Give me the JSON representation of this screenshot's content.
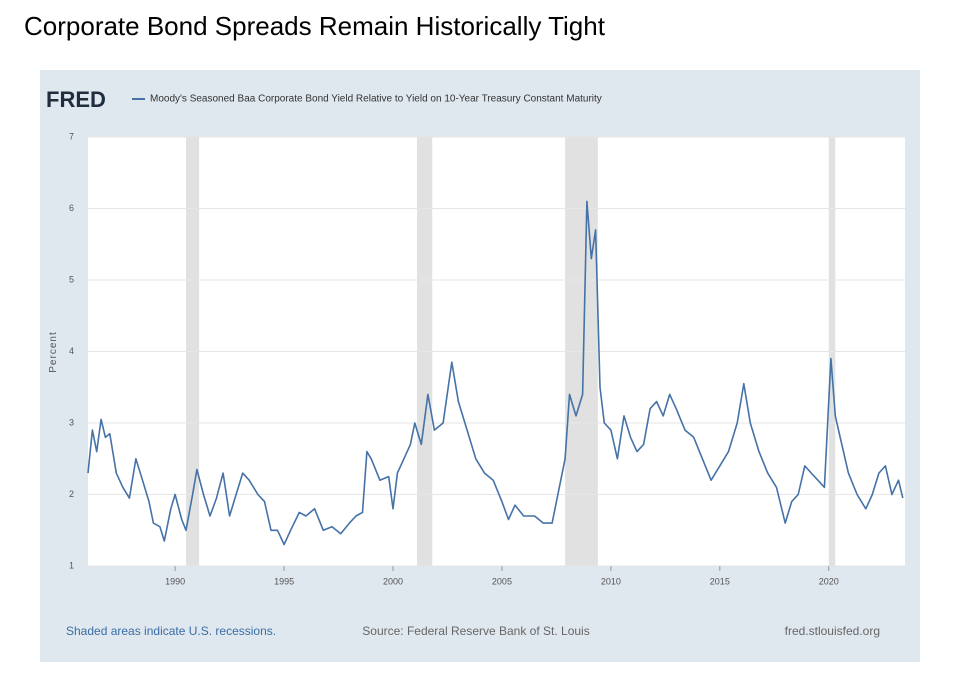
{
  "page_title": "Corporate Bond Spreads Remain Historically Tight",
  "chart_data": {
    "type": "line",
    "logo": "FRED",
    "title": "Moody's Seasoned Baa Corporate Bond Yield Relative to Yield on 10-Year Treasury Constant Maturity",
    "ylabel": "Percent",
    "note": "Shaded areas indicate U.S. recessions.",
    "source": "Source: Federal Reserve Bank of St. Louis",
    "url": "fred.stlouisfed.org",
    "xlim": [
      1986,
      2023.5
    ],
    "ylim": [
      1,
      7
    ],
    "xticks": [
      1990,
      1995,
      2000,
      2005,
      2010,
      2015,
      2020
    ],
    "yticks": [
      1,
      2,
      3,
      4,
      5,
      6,
      7
    ],
    "grid": true,
    "recession_color": "#e1e1e1",
    "recessions": [
      [
        1990.5,
        1991.1
      ],
      [
        2001.1,
        2001.8
      ],
      [
        2007.9,
        2009.4
      ],
      [
        2020.0,
        2020.3
      ]
    ],
    "series": [
      {
        "name": "Moody's Seasoned Baa Corporate Bond Yield Relative to Yield on 10-Year Treasury Constant Maturity",
        "color": "#4572a7",
        "x": [
          1986.0,
          1986.2,
          1986.4,
          1986.6,
          1986.8,
          1987.0,
          1987.3,
          1987.6,
          1987.9,
          1988.2,
          1988.5,
          1988.8,
          1989.0,
          1989.3,
          1989.5,
          1989.8,
          1990.0,
          1990.3,
          1990.5,
          1990.8,
          1991.0,
          1991.3,
          1991.6,
          1991.9,
          1992.2,
          1992.5,
          1992.8,
          1993.1,
          1993.4,
          1993.8,
          1994.1,
          1994.4,
          1994.7,
          1995.0,
          1995.3,
          1995.7,
          1996.0,
          1996.4,
          1996.8,
          1997.2,
          1997.6,
          1998.0,
          1998.3,
          1998.6,
          1998.8,
          1999.0,
          1999.4,
          1999.8,
          2000.0,
          2000.2,
          2000.5,
          2000.8,
          2001.0,
          2001.3,
          2001.6,
          2001.9,
          2002.3,
          2002.7,
          2003.0,
          2003.4,
          2003.8,
          2004.2,
          2004.6,
          2005.0,
          2005.3,
          2005.6,
          2006.0,
          2006.5,
          2006.9,
          2007.3,
          2007.6,
          2007.9,
          2008.1,
          2008.4,
          2008.7,
          2008.9,
          2009.1,
          2009.3,
          2009.5,
          2009.7,
          2010.0,
          2010.3,
          2010.6,
          2010.9,
          2011.2,
          2011.5,
          2011.8,
          2012.1,
          2012.4,
          2012.7,
          2013.0,
          2013.4,
          2013.8,
          2014.2,
          2014.6,
          2015.0,
          2015.4,
          2015.8,
          2016.1,
          2016.4,
          2016.8,
          2017.2,
          2017.6,
          2018.0,
          2018.3,
          2018.6,
          2018.9,
          2019.2,
          2019.5,
          2019.8,
          2020.1,
          2020.3,
          2020.6,
          2020.9,
          2021.3,
          2021.7,
          2022.0,
          2022.3,
          2022.6,
          2022.9,
          2023.2,
          2023.4
        ],
        "values": [
          2.3,
          2.9,
          2.6,
          3.05,
          2.8,
          2.85,
          2.3,
          2.1,
          1.95,
          2.5,
          2.2,
          1.9,
          1.6,
          1.55,
          1.35,
          1.8,
          2.0,
          1.65,
          1.5,
          2.0,
          2.35,
          2.0,
          1.7,
          1.95,
          2.3,
          1.7,
          2.0,
          2.3,
          2.2,
          2.0,
          1.9,
          1.5,
          1.5,
          1.3,
          1.5,
          1.75,
          1.7,
          1.8,
          1.5,
          1.55,
          1.45,
          1.6,
          1.7,
          1.75,
          2.6,
          2.5,
          2.2,
          2.25,
          1.8,
          2.3,
          2.5,
          2.7,
          3.0,
          2.7,
          3.4,
          2.9,
          3.0,
          3.85,
          3.3,
          2.9,
          2.5,
          2.3,
          2.2,
          1.9,
          1.65,
          1.85,
          1.7,
          1.7,
          1.6,
          1.6,
          2.05,
          2.5,
          3.4,
          3.1,
          3.4,
          6.1,
          5.3,
          5.7,
          3.5,
          3.0,
          2.9,
          2.5,
          3.1,
          2.8,
          2.6,
          2.7,
          3.2,
          3.3,
          3.1,
          3.4,
          3.2,
          2.9,
          2.8,
          2.5,
          2.2,
          2.4,
          2.6,
          3.0,
          3.55,
          3.0,
          2.6,
          2.3,
          2.1,
          1.6,
          1.9,
          2.0,
          2.4,
          2.3,
          2.2,
          2.1,
          3.9,
          3.1,
          2.7,
          2.3,
          2.0,
          1.8,
          2.0,
          2.3,
          2.4,
          2.0,
          2.2,
          1.95
        ]
      }
    ]
  }
}
